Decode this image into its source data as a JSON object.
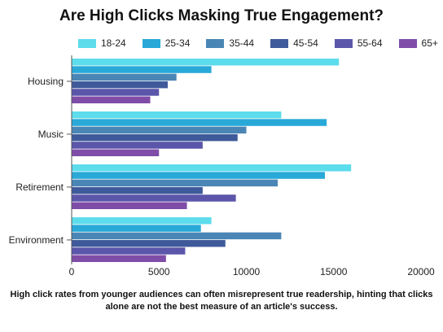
{
  "chart_data": {
    "type": "bar",
    "orientation": "horizontal",
    "title": "Are High Clicks Masking True Engagement?",
    "categories": [
      "Housing",
      "Music",
      "Retirement",
      "Environment"
    ],
    "series": [
      {
        "name": "18-24",
        "color": "#5ddcec",
        "values": [
          15300,
          12000,
          16000,
          8000
        ]
      },
      {
        "name": "25-34",
        "color": "#29a9d8",
        "values": [
          8000,
          14600,
          14500,
          7400
        ]
      },
      {
        "name": "35-44",
        "color": "#4a86b5",
        "values": [
          6000,
          10000,
          11800,
          12000
        ]
      },
      {
        "name": "45-54",
        "color": "#3f5a9a",
        "values": [
          5500,
          9500,
          7500,
          8800
        ]
      },
      {
        "name": "55-64",
        "color": "#5b56aa",
        "values": [
          5000,
          7500,
          9400,
          6500
        ]
      },
      {
        "name": "65+",
        "color": "#7f4da8",
        "values": [
          4500,
          5000,
          6600,
          5400
        ]
      }
    ],
    "xlim": [
      0,
      20000
    ],
    "xticks": [
      "0",
      "5000",
      "10000",
      "15000",
      "20000"
    ],
    "xticks_values": [
      0,
      5000,
      10000,
      15000,
      20000
    ],
    "legend_position": "top",
    "grid": false
  },
  "caption_lines": [
    "High click rates from younger audiences can often misrepresent true readership, hinting that clicks",
    "alone are not the best measure of an article's success."
  ]
}
